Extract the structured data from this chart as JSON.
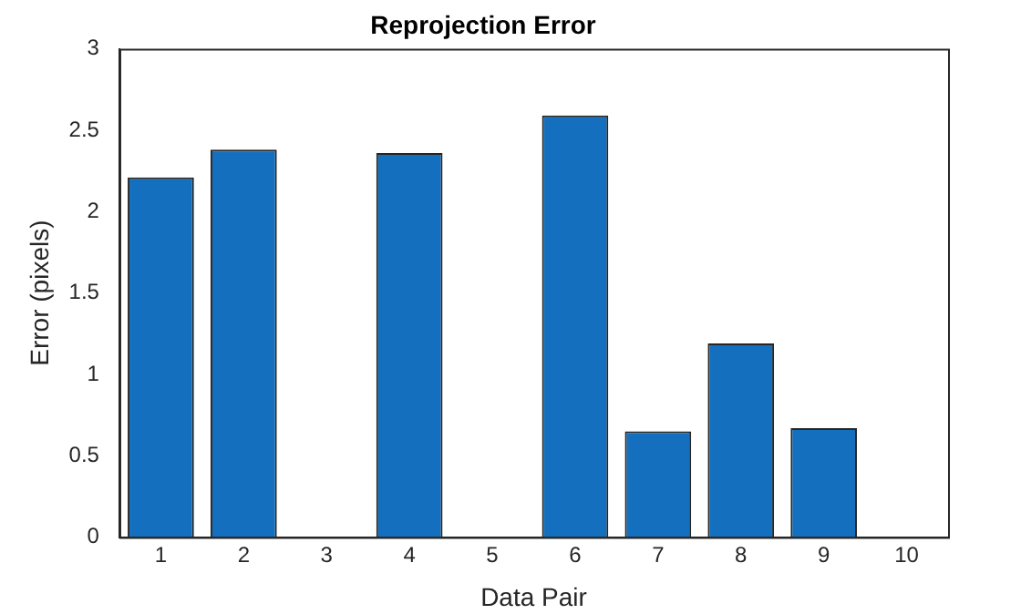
{
  "chart_data": {
    "type": "bar",
    "title": "Reprojection Error",
    "xlabel": "Data Pair",
    "ylabel": "Error (pixels)",
    "categories": [
      "1",
      "2",
      "3",
      "4",
      "5",
      "6",
      "7",
      "8",
      "9",
      "10"
    ],
    "values": [
      2.21,
      2.38,
      null,
      2.36,
      null,
      2.59,
      0.65,
      1.19,
      0.67,
      null
    ],
    "color": "#1470be",
    "ylim": [
      0,
      3
    ],
    "yticks": [
      0,
      0.5,
      1,
      1.5,
      2,
      2.5,
      3
    ],
    "grid": false
  }
}
